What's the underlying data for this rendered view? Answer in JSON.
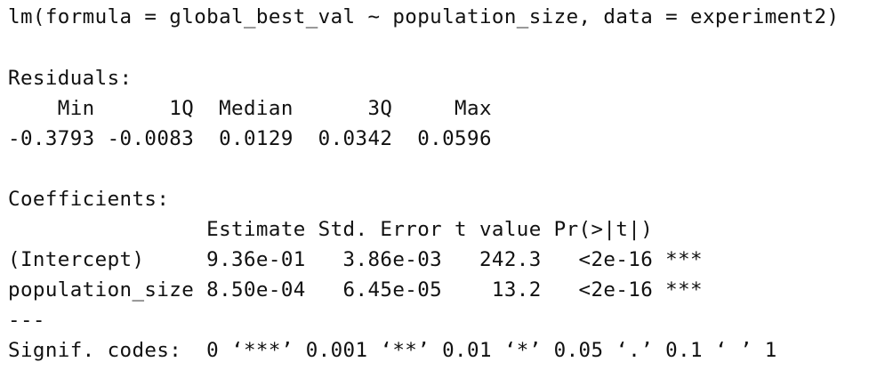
{
  "call": "lm(formula = global_best_val ~ population_size, data = experiment2)",
  "residuals": {
    "heading": "Residuals:",
    "header_row": "    Min      1Q  Median      3Q     Max ",
    "value_row": "-0.3793 -0.0083  0.0129  0.0342  0.0596 "
  },
  "coefficients": {
    "heading": "Coefficients:",
    "header_row": "                Estimate Std. Error t value Pr(>|t|)    ",
    "rows": [
      "(Intercept)     9.36e-01   3.86e-03   242.3   <2e-16 ***",
      "population_size 8.50e-04   6.45e-05    13.2   <2e-16 ***"
    ]
  },
  "separator": "---",
  "signif_codes": "Signif. codes:  0 ‘***’ 0.001 ‘**’ 0.01 ‘*’ 0.05 ‘.’ 0.1 ‘ ’ 1"
}
